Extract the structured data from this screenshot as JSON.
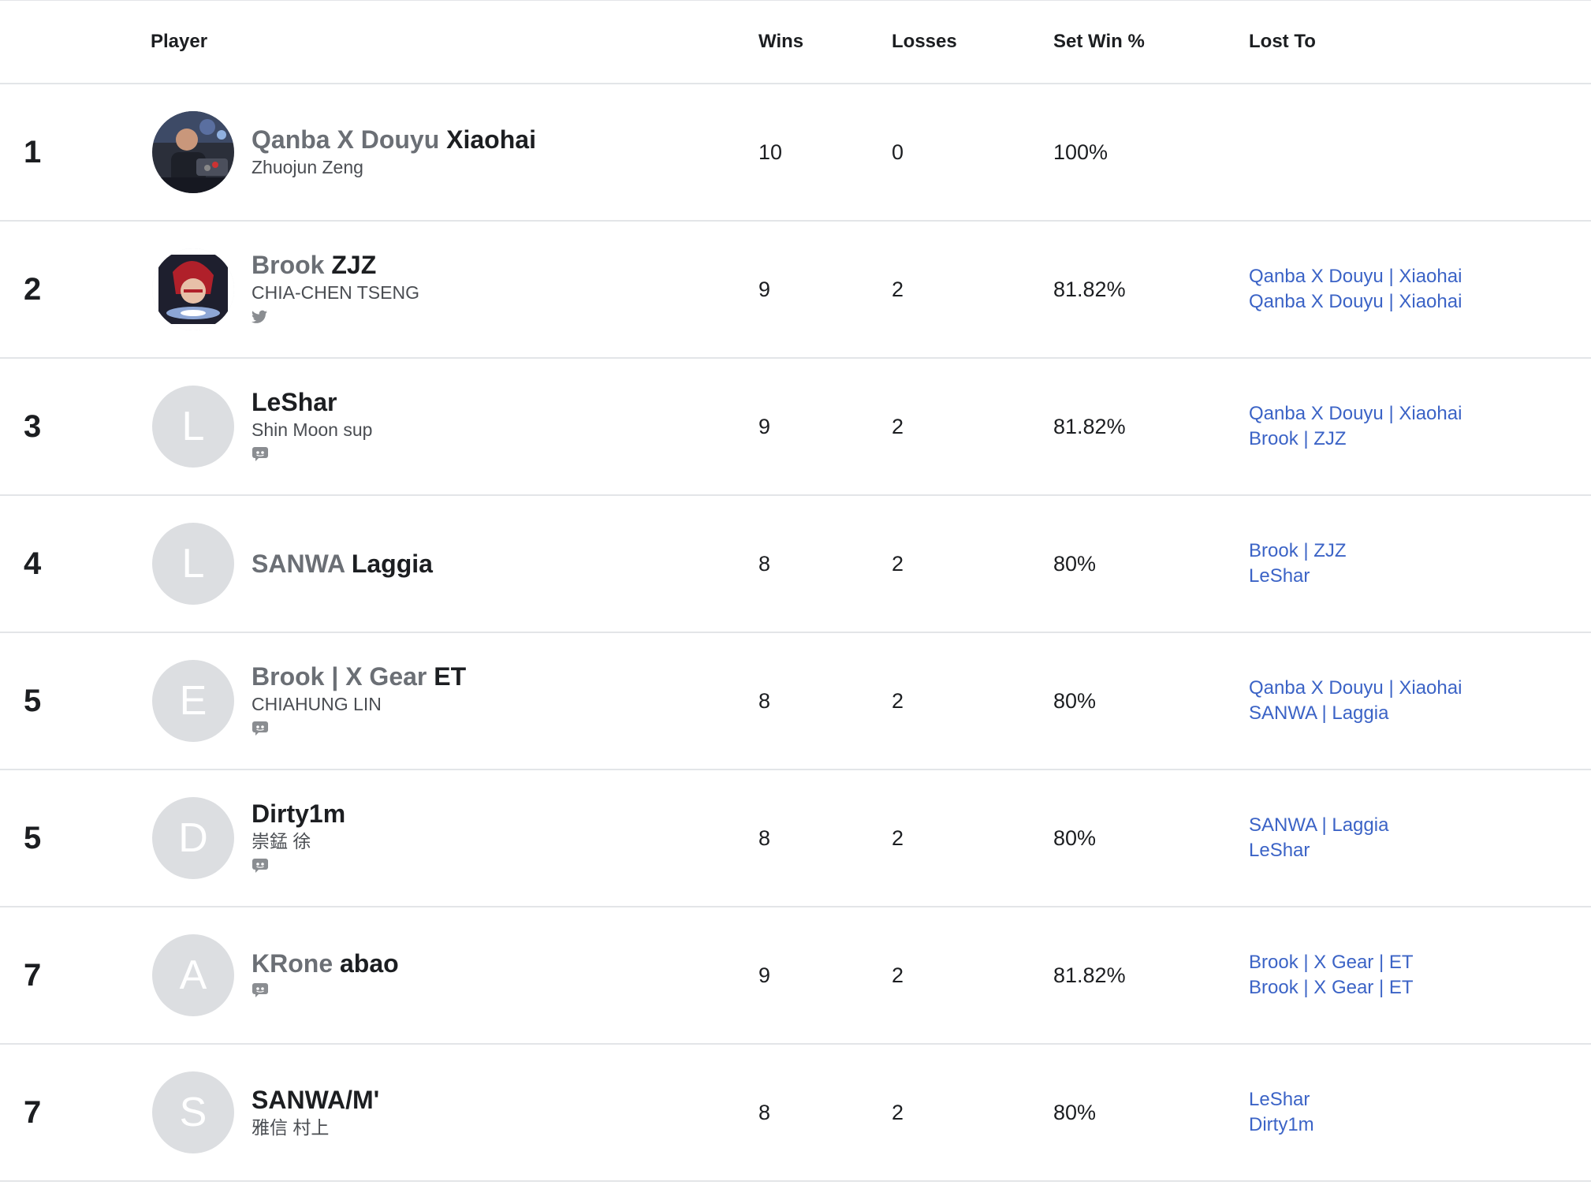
{
  "headers": {
    "player": "Player",
    "wins": "Wins",
    "losses": "Losses",
    "set_win_pct": "Set Win %",
    "lost_to": "Lost To"
  },
  "rows": [
    {
      "rank": "1",
      "prefix": "Qanba X Douyu",
      "gamertag": "Xiaohai",
      "real_name": "Zhuojun Zeng",
      "avatar": "photo",
      "avatar_letter": "",
      "social_icon": "",
      "wins": "10",
      "losses": "0",
      "set_win_pct": "100%",
      "lost_to": []
    },
    {
      "rank": "2",
      "prefix": "Brook",
      "gamertag": "ZJZ",
      "real_name": "CHIA-CHEN TSENG",
      "avatar": "photo",
      "avatar_letter": "",
      "social_icon": "twitter-icon",
      "wins": "9",
      "losses": "2",
      "set_win_pct": "81.82%",
      "lost_to": [
        "Qanba X Douyu | Xiaohai",
        "Qanba X Douyu | Xiaohai"
      ]
    },
    {
      "rank": "3",
      "prefix": "",
      "gamertag": "LeShar",
      "real_name": "Shin Moon sup",
      "avatar": "letter",
      "avatar_letter": "L",
      "social_icon": "discord-icon",
      "wins": "9",
      "losses": "2",
      "set_win_pct": "81.82%",
      "lost_to": [
        "Qanba X Douyu | Xiaohai",
        "Brook | ZJZ"
      ]
    },
    {
      "rank": "4",
      "prefix": "SANWA",
      "gamertag": "Laggia",
      "real_name": "",
      "avatar": "letter",
      "avatar_letter": "L",
      "social_icon": "",
      "wins": "8",
      "losses": "2",
      "set_win_pct": "80%",
      "lost_to": [
        "Brook | ZJZ",
        "LeShar"
      ]
    },
    {
      "rank": "5",
      "prefix": "Brook | X Gear",
      "gamertag": "ET",
      "real_name": "CHIAHUNG LIN",
      "avatar": "letter",
      "avatar_letter": "E",
      "social_icon": "discord-icon",
      "wins": "8",
      "losses": "2",
      "set_win_pct": "80%",
      "lost_to": [
        "Qanba X Douyu | Xiaohai",
        "SANWA | Laggia"
      ]
    },
    {
      "rank": "5",
      "prefix": "",
      "gamertag": "Dirty1m",
      "real_name": "崇錳 徐",
      "avatar": "letter",
      "avatar_letter": "D",
      "social_icon": "discord-icon",
      "wins": "8",
      "losses": "2",
      "set_win_pct": "80%",
      "lost_to": [
        "SANWA | Laggia",
        "LeShar"
      ]
    },
    {
      "rank": "7",
      "prefix": "KRone",
      "gamertag": "abao",
      "real_name": "",
      "avatar": "letter",
      "avatar_letter": "A",
      "social_icon": "discord-icon",
      "wins": "9",
      "losses": "2",
      "set_win_pct": "81.82%",
      "lost_to": [
        "Brook | X Gear | ET",
        "Brook | X Gear | ET"
      ]
    },
    {
      "rank": "7",
      "prefix": "",
      "gamertag": "SANWA/M'",
      "real_name": "雅信 村上",
      "avatar": "letter",
      "avatar_letter": "S",
      "social_icon": "",
      "wins": "8",
      "losses": "2",
      "set_win_pct": "80%",
      "lost_to": [
        "LeShar",
        "Dirty1m"
      ]
    }
  ],
  "colors": {
    "link": "#3b63c6",
    "prefix": "#6b6f75",
    "avatar_bg": "#dcdee1",
    "divider": "#e3e5e8",
    "icon": "#8a8d91"
  }
}
